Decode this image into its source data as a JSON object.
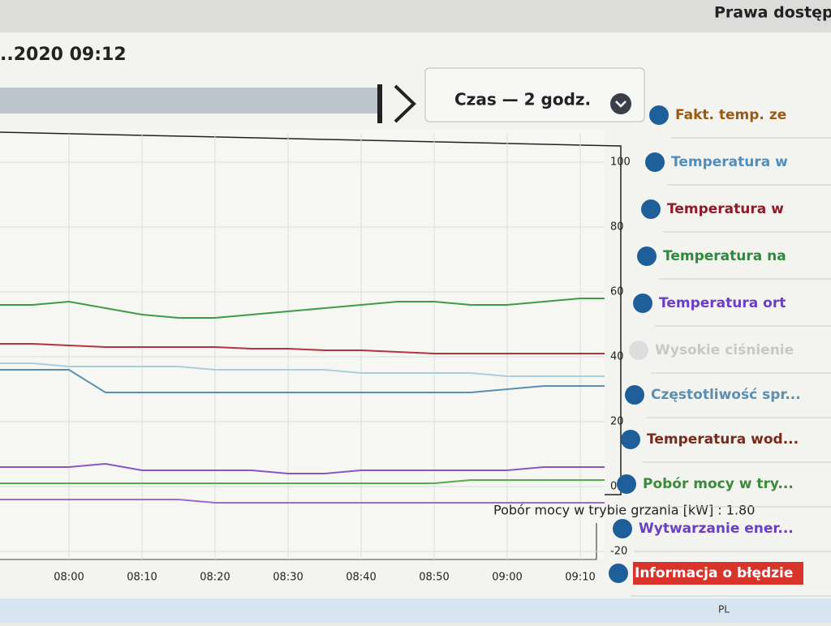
{
  "header": {
    "access": "Prawa dostęp",
    "date": "..2020 09:12",
    "range": "Czas — 2 godz."
  },
  "chart_data": {
    "type": "line",
    "x": [
      "07:50",
      "07:55",
      "08:00",
      "08:05",
      "08:10",
      "08:15",
      "08:20",
      "08:25",
      "08:30",
      "08:35",
      "08:40",
      "08:45",
      "08:50",
      "08:55",
      "09:00",
      "09:05",
      "09:10",
      "09:15"
    ],
    "xticks": [
      "08:00",
      "08:10",
      "08:20",
      "08:30",
      "08:40",
      "08:50",
      "09:00",
      "09:10"
    ],
    "ylim": [
      -20,
      100
    ],
    "yticks": [
      100,
      80,
      60,
      40,
      20,
      0,
      -20
    ],
    "grid": true,
    "series": [
      {
        "color": "#3f9a4a",
        "values": [
          56,
          56,
          57,
          55,
          53,
          52,
          52,
          53,
          54,
          55,
          56,
          57,
          57,
          56,
          56,
          57,
          58,
          58
        ]
      },
      {
        "color": "#b3343c",
        "values": [
          44,
          44,
          43.5,
          43,
          43,
          43,
          43,
          42.5,
          42.5,
          42,
          42,
          41.5,
          41,
          41,
          41,
          41,
          41,
          41
        ]
      },
      {
        "color": "#a9cfd8",
        "values": [
          38,
          38,
          37,
          37,
          37,
          37,
          36,
          36,
          36,
          36,
          35,
          35,
          35,
          35,
          34,
          34,
          34,
          34
        ]
      },
      {
        "color": "#5b8fb0",
        "values": [
          36,
          36,
          36,
          29,
          29,
          29,
          29,
          29,
          29,
          29,
          29,
          29,
          29,
          29,
          30,
          31,
          31,
          31
        ]
      },
      {
        "color": "#8a55c4",
        "values": [
          6,
          6,
          6,
          7,
          5,
          5,
          5,
          5,
          4,
          4,
          5,
          5,
          5,
          5,
          5,
          6,
          6,
          6
        ]
      },
      {
        "color": "#58a94a",
        "values": [
          1,
          1,
          1,
          1,
          1,
          1,
          1,
          1,
          1,
          1,
          1,
          1,
          1,
          2,
          2,
          2,
          2,
          2
        ]
      },
      {
        "color": "#9a6bd0",
        "values": [
          -4,
          -4,
          -4,
          -4,
          -4,
          -4,
          -5,
          -5,
          -5,
          -5,
          -5,
          -5,
          -5,
          -5,
          -5,
          -5,
          -5,
          -5
        ]
      }
    ],
    "tooltip": "Pobór mocy w trybie grzania [kW] : 1.80"
  },
  "legend": [
    {
      "text": "Fakt. temp. ze",
      "color": "#9a5a12"
    },
    {
      "text": "Temperatura w",
      "color": "#4e8fc0"
    },
    {
      "text": "Temperatura w",
      "color": "#8c1c2a"
    },
    {
      "text": "Temperatura na",
      "color": "#2c8a3a"
    },
    {
      "text": "Temperatura ort",
      "color": "#6a3fc0"
    },
    {
      "text": "Wysokie ciśnienie",
      "color": "#c8c8c8"
    },
    {
      "text": "Częstotliwość spr...",
      "color": "#5b8fb0"
    },
    {
      "text": "Temperatura wod...",
      "color": "#7a2a1a"
    },
    {
      "text": "Pobór mocy w try...",
      "color": "#3c8a3a"
    },
    {
      "text": "Wytwarzanie ener...",
      "color": "#6a3fc0"
    },
    {
      "text": "Informacja o błędzie",
      "color": "#ffffff"
    }
  ],
  "taskbar": {
    "lang": "PL"
  }
}
